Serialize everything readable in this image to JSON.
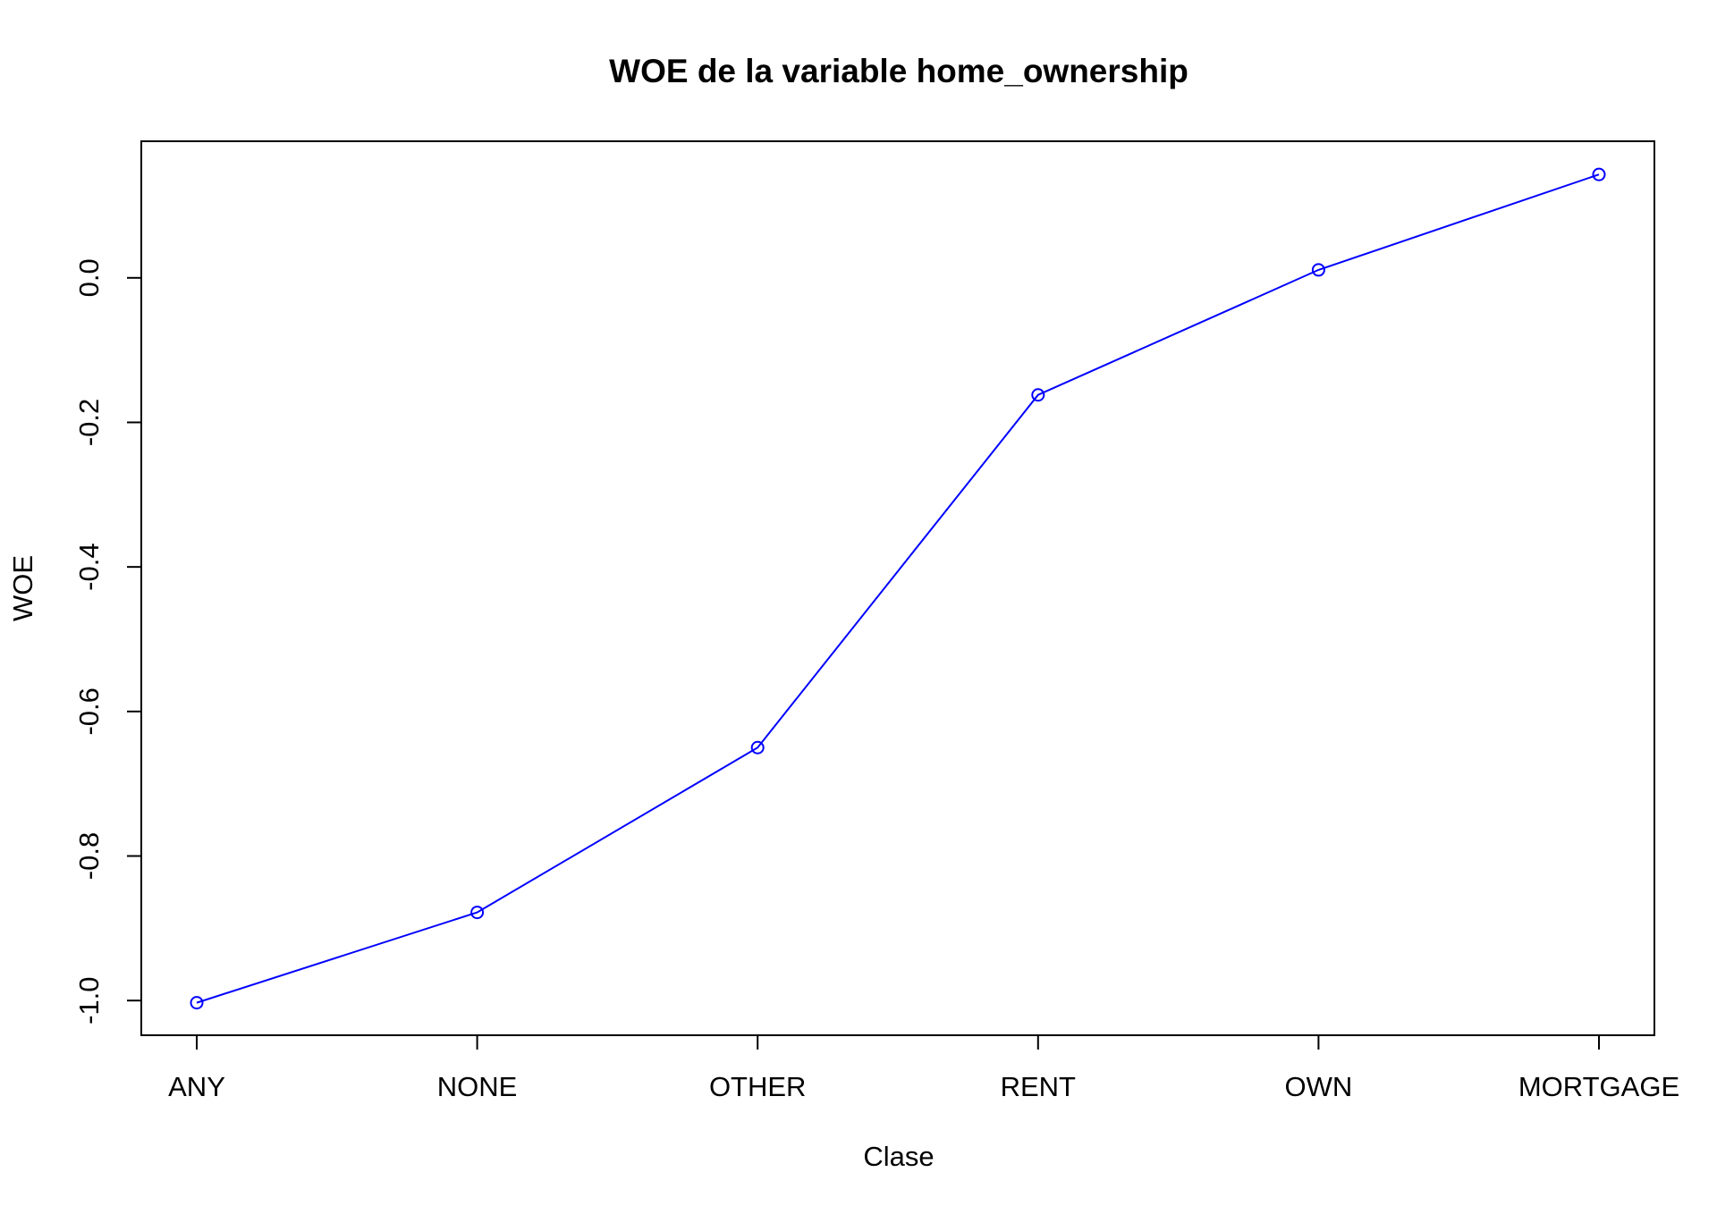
{
  "chart_data": {
    "type": "line",
    "title": "WOE de la variable home_ownership",
    "xlabel": "Clase",
    "ylabel": "WOE",
    "categories": [
      "ANY",
      "NONE",
      "OTHER",
      "RENT",
      "OWN",
      "MORTGAGE"
    ],
    "series": [
      {
        "values": [
          -1.003,
          -0.878,
          -0.65,
          -0.162,
          0.011,
          0.143
        ],
        "color": "#0000ff",
        "marker": "open-circle"
      }
    ],
    "yticks": [
      -1.0,
      -0.8,
      -0.6,
      -0.4,
      -0.2,
      0.0
    ],
    "ytick_labels": [
      "-1.0",
      "-0.8",
      "-0.6",
      "-0.4",
      "-0.2",
      "0.0"
    ],
    "ylim": [
      -1.048,
      0.189
    ],
    "grid": false,
    "legend": "none"
  }
}
